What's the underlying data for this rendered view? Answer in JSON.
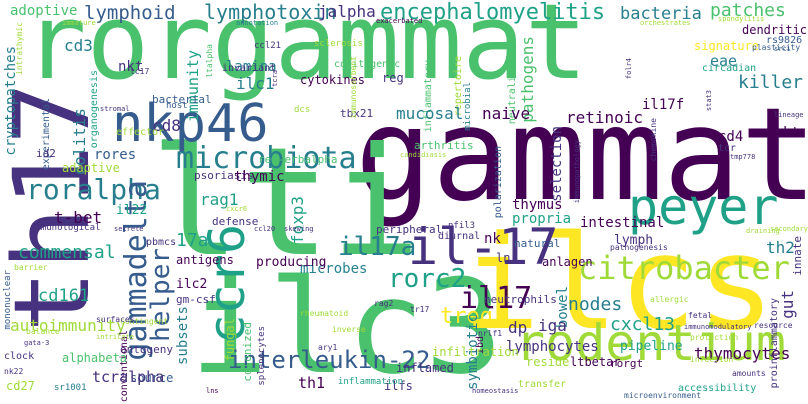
{
  "palette": {
    "yellow": "#fde725",
    "lime": "#a0da39",
    "green": "#4ac16d",
    "teal": "#1fa187",
    "blue": "#277f8e",
    "indigo": "#365c8d",
    "violet": "#46327e",
    "purple": "#440154"
  },
  "words": [
    {
      "text": "rorgammat",
      "color": "#4ac16d"
    },
    {
      "text": "gammat",
      "color": "#440154"
    },
    {
      "text": "th17",
      "color": "#46327e"
    },
    {
      "text": "lti",
      "color": "#4ac16d"
    },
    {
      "text": "ilc3",
      "color": "#4ac16d"
    },
    {
      "text": "ilcs",
      "color": "#fde725"
    },
    {
      "text": "nkp46",
      "color": "#365c8d"
    },
    {
      "text": "il-17",
      "color": "#46327e"
    },
    {
      "text": "peyer",
      "color": "#1fa187"
    },
    {
      "text": "rodentium",
      "color": "#a0da39"
    },
    {
      "text": "ccr6",
      "color": "#1fa187"
    },
    {
      "text": "microbiota",
      "color": "#277f8e"
    },
    {
      "text": "roralpha",
      "color": "#277f8e"
    },
    {
      "text": "citrobacter",
      "color": "#a0da39"
    },
    {
      "text": "gammadelta",
      "color": "#365c8d"
    },
    {
      "text": "rorc2",
      "color": "#1fa187"
    },
    {
      "text": "il17a",
      "color": "#277f8e"
    },
    {
      "text": "il17",
      "color": "#440154"
    },
    {
      "text": "helper",
      "color": "#365c8d"
    },
    {
      "text": "interleukin-22",
      "color": "#365c8d"
    },
    {
      "text": "encephalomyelitis",
      "color": "#1fa187"
    },
    {
      "text": "lymphotoxin",
      "color": "#277f8e"
    },
    {
      "text": "lymphoid",
      "color": "#365c8d"
    },
    {
      "text": "jalpha",
      "color": "#46327e"
    },
    {
      "text": "bacteria",
      "color": "#277f8e"
    },
    {
      "text": "patches",
      "color": "#4ac16d"
    },
    {
      "text": "dendritic",
      "color": "#440154"
    },
    {
      "text": "adoptive",
      "color": "#4ac16d"
    },
    {
      "text": "immature",
      "color": "#a0da39"
    },
    {
      "text": "intrathymic",
      "color": "#a0da39"
    },
    {
      "text": "cd3",
      "color": "#277f8e"
    },
    {
      "text": "colitis",
      "color": "#277f8e"
    },
    {
      "text": "cryptopatches",
      "color": "#277f8e"
    },
    {
      "text": "organogenesis",
      "color": "#1fa187"
    },
    {
      "text": "immunity",
      "color": "#1fa187"
    },
    {
      "text": "nkt",
      "color": "#46327e"
    },
    {
      "text": "tc17",
      "color": "#46327e"
    },
    {
      "text": "lamina",
      "color": "#277f8e"
    },
    {
      "text": "invariant",
      "color": "#46327e"
    },
    {
      "text": "ilc1",
      "color": "#277f8e"
    },
    {
      "text": "ccl21",
      "color": "#46327e"
    },
    {
      "text": "tcra",
      "color": "#46327e"
    },
    {
      "text": "cytokines",
      "color": "#440154"
    },
    {
      "text": "colitogenic",
      "color": "#4ac16d"
    },
    {
      "text": "sclerosis",
      "color": "#a0da39"
    },
    {
      "text": "reg",
      "color": "#46327e"
    },
    {
      "text": "inflammatory",
      "color": "#4ac16d"
    },
    {
      "text": "microbial",
      "color": "#277f8e"
    },
    {
      "text": "repertoire",
      "color": "#a0da39"
    },
    {
      "text": "neutralization",
      "color": "#4ac16d"
    },
    {
      "text": "pathogens",
      "color": "#4ac16d"
    },
    {
      "text": "signature",
      "color": "#fde725"
    },
    {
      "text": "eae",
      "color": "#277f8e"
    },
    {
      "text": "killer",
      "color": "#277f8e"
    },
    {
      "text": "circadian",
      "color": "#1fa187"
    },
    {
      "text": "plasticity",
      "color": "#365c8d"
    },
    {
      "text": "rs9826",
      "color": "#365c8d"
    },
    {
      "text": "srci",
      "color": "#365c8d"
    },
    {
      "text": "spondylitis",
      "color": "#a0da39"
    },
    {
      "text": "orchestrates",
      "color": "#a0da39"
    },
    {
      "text": "exacerbated",
      "color": "#440154"
    },
    {
      "text": "annotation",
      "color": "#277f8e"
    },
    {
      "text": "mucosal",
      "color": "#277f8e"
    },
    {
      "text": "naive",
      "color": "#440154"
    },
    {
      "text": "retinoic",
      "color": "#440154"
    },
    {
      "text": "il17f",
      "color": "#440154"
    },
    {
      "text": "cd4",
      "color": "#440154"
    },
    {
      "text": "inkt",
      "color": "#440154"
    },
    {
      "text": "rores",
      "color": "#365c8d"
    },
    {
      "text": "experimental",
      "color": "#365c8d"
    },
    {
      "text": "adaptive",
      "color": "#a0da39"
    },
    {
      "text": "cd8",
      "color": "#46327e"
    },
    {
      "text": "bacterial",
      "color": "#365c8d"
    },
    {
      "text": "host",
      "color": "#365c8d"
    },
    {
      "text": "effector",
      "color": "#a0da39"
    },
    {
      "text": "id2",
      "color": "#46327e"
    },
    {
      "text": "mononuclear",
      "color": "#365c8d"
    },
    {
      "text": "immunological",
      "color": "#46327e"
    },
    {
      "text": "psoriasis",
      "color": "#46327e"
    },
    {
      "text": "thymic",
      "color": "#440154"
    },
    {
      "text": "rag1",
      "color": "#1fa187"
    },
    {
      "text": "il22",
      "color": "#1fa187"
    },
    {
      "text": "t-bet",
      "color": "#440154"
    },
    {
      "text": "commensal",
      "color": "#1fa187"
    },
    {
      "text": "17a",
      "color": "#1fa187"
    },
    {
      "text": "pbmcs",
      "color": "#46327e"
    },
    {
      "text": "antigens",
      "color": "#440154"
    },
    {
      "text": "defense",
      "color": "#46327e"
    },
    {
      "text": "foxp3",
      "color": "#1fa187"
    },
    {
      "text": "rev-erbalpha",
      "color": "#4ac16d"
    },
    {
      "text": "arthritis",
      "color": "#4ac16d"
    },
    {
      "text": "candidiasis",
      "color": "#a0da39"
    },
    {
      "text": "thymus",
      "color": "#440154"
    },
    {
      "text": "propria",
      "color": "#1fa187"
    },
    {
      "text": "intestinal",
      "color": "#440154"
    },
    {
      "text": "lymph",
      "color": "#46327e"
    },
    {
      "text": "nk",
      "color": "#440154"
    },
    {
      "text": "ln",
      "color": "#46327e"
    },
    {
      "text": "peripheral",
      "color": "#46327e"
    },
    {
      "text": "natural",
      "color": "#365c8d"
    },
    {
      "text": "anlagen",
      "color": "#440154"
    },
    {
      "text": "diurnal",
      "color": "#46327e"
    },
    {
      "text": "nfil3",
      "color": "#46327e"
    },
    {
      "text": "polarization",
      "color": "#365c8d"
    },
    {
      "text": "immunopathology",
      "color": "#46327e"
    },
    {
      "text": "tcr",
      "color": "#46327e"
    },
    {
      "text": "tmp778",
      "color": "#46327e"
    },
    {
      "text": "th2",
      "color": "#277f8e"
    },
    {
      "text": "microbes",
      "color": "#277f8e"
    },
    {
      "text": "ilc2",
      "color": "#440154"
    },
    {
      "text": "gm-csf",
      "color": "#46327e"
    },
    {
      "text": "producing",
      "color": "#440154"
    },
    {
      "text": "subsets",
      "color": "#277f8e"
    },
    {
      "text": "cd161",
      "color": "#1fa187"
    },
    {
      "text": "autoimmunity",
      "color": "#a0da39"
    },
    {
      "text": "treg",
      "color": "#fde725"
    },
    {
      "text": "neutrophils",
      "color": "#46327e"
    },
    {
      "text": "nodes",
      "color": "#277f8e"
    },
    {
      "text": "bowel",
      "color": "#277f8e"
    },
    {
      "text": "iga",
      "color": "#46327e"
    },
    {
      "text": "dp",
      "color": "#46327e"
    },
    {
      "text": "symbiotic",
      "color": "#277f8e"
    },
    {
      "text": "lymphocytes",
      "color": "#46327e"
    },
    {
      "text": "cxcl13",
      "color": "#1fa187"
    },
    {
      "text": "pipeline",
      "color": "#1fa187"
    },
    {
      "text": "rorgt",
      "color": "#440154"
    },
    {
      "text": "ltbetar",
      "color": "#440154"
    },
    {
      "text": "reside",
      "color": "#a0da39"
    },
    {
      "text": "ibd",
      "color": "#440154"
    },
    {
      "text": "infiltration",
      "color": "#a0da39"
    },
    {
      "text": "inflamed",
      "color": "#46327e"
    },
    {
      "text": "ontogeny",
      "color": "#46327e"
    },
    {
      "text": "conventional",
      "color": "#440154"
    },
    {
      "text": "fungal",
      "color": "#a0da39"
    },
    {
      "text": "colonized",
      "color": "#4ac16d"
    },
    {
      "text": "splenocytes",
      "color": "#46327e"
    },
    {
      "text": "alphabeta",
      "color": "#4ac16d"
    },
    {
      "text": "source",
      "color": "#365c8d"
    },
    {
      "text": "tcralpha",
      "color": "#46327e"
    },
    {
      "text": "th1",
      "color": "#440154"
    },
    {
      "text": "thymocytes",
      "color": "#440154"
    },
    {
      "text": "gut",
      "color": "#46327e"
    },
    {
      "text": "innate",
      "color": "#46327e"
    },
    {
      "text": "proinflammatory",
      "color": "#46327e"
    },
    {
      "text": "ilfs",
      "color": "#46327e"
    },
    {
      "text": "inflammation",
      "color": "#1fa187"
    },
    {
      "text": "transfer",
      "color": "#a0da39"
    },
    {
      "text": "accessibility",
      "color": "#1fa187"
    },
    {
      "text": "homeostasis",
      "color": "#46327e"
    },
    {
      "text": "microenvironment",
      "color": "#365c8d"
    },
    {
      "text": "amounts",
      "color": "#46327e"
    },
    {
      "text": "infection",
      "color": "#a0da39"
    },
    {
      "text": "protection",
      "color": "#a0da39"
    },
    {
      "text": "immunomodulatory",
      "color": "#46327e"
    },
    {
      "text": "resource",
      "color": "#46327e"
    },
    {
      "text": "fetal",
      "color": "#46327e"
    },
    {
      "text": "allergic",
      "color": "#a0da39"
    },
    {
      "text": "nrlf1",
      "color": "#46327e"
    },
    {
      "text": "pathogenesis",
      "color": "#46327e"
    },
    {
      "text": "rag2",
      "color": "#46327e"
    },
    {
      "text": "tr17",
      "color": "#46327e"
    },
    {
      "text": "inverse",
      "color": "#a0da39"
    },
    {
      "text": "rheumatoid",
      "color": "#a0da39"
    },
    {
      "text": "ary1",
      "color": "#46327e"
    },
    {
      "text": "cd27",
      "color": "#a0da39"
    },
    {
      "text": "sr1001",
      "color": "#277f8e"
    },
    {
      "text": "lns",
      "color": "#440154"
    },
    {
      "text": "contingent",
      "color": "#a0da39"
    },
    {
      "text": "nk22",
      "color": "#46327e"
    },
    {
      "text": "clock",
      "color": "#46327e"
    },
    {
      "text": "gata-3",
      "color": "#46327e"
    },
    {
      "text": "intricate",
      "color": "#a0da39"
    },
    {
      "text": "balance",
      "color": "#a0da39"
    },
    {
      "text": "barrier",
      "color": "#a0da39"
    },
    {
      "text": "surfaces",
      "color": "#46327e"
    },
    {
      "text": "secrete",
      "color": "#46327e"
    },
    {
      "text": "skewing",
      "color": "#46327e"
    },
    {
      "text": "ccl20",
      "color": "#46327e"
    },
    {
      "text": "cxcr6",
      "color": "#a0da39"
    },
    {
      "text": "dcs",
      "color": "#a0da39"
    },
    {
      "text": "tbx21",
      "color": "#46327e"
    },
    {
      "text": "stromal",
      "color": "#46327e"
    },
    {
      "text": "draining",
      "color": "#a0da39"
    },
    {
      "text": "secondary",
      "color": "#a0da39"
    },
    {
      "text": "lineage",
      "color": "#46327e"
    },
    {
      "text": "stat3",
      "color": "#46327e"
    },
    {
      "text": "folr4",
      "color": "#46327e"
    },
    {
      "text": "chemokine",
      "color": "#46327e"
    },
    {
      "text": "selection",
      "color": "#46327e"
    },
    {
      "text": "immunosorbent",
      "color": "#a0da39"
    },
    {
      "text": "ltalpha",
      "color": "#4ac16d"
    },
    {
      "text": "sicop3",
      "color": "#46327e"
    },
    {
      "text": "s1p",
      "color": "#a0da39"
    }
  ]
}
